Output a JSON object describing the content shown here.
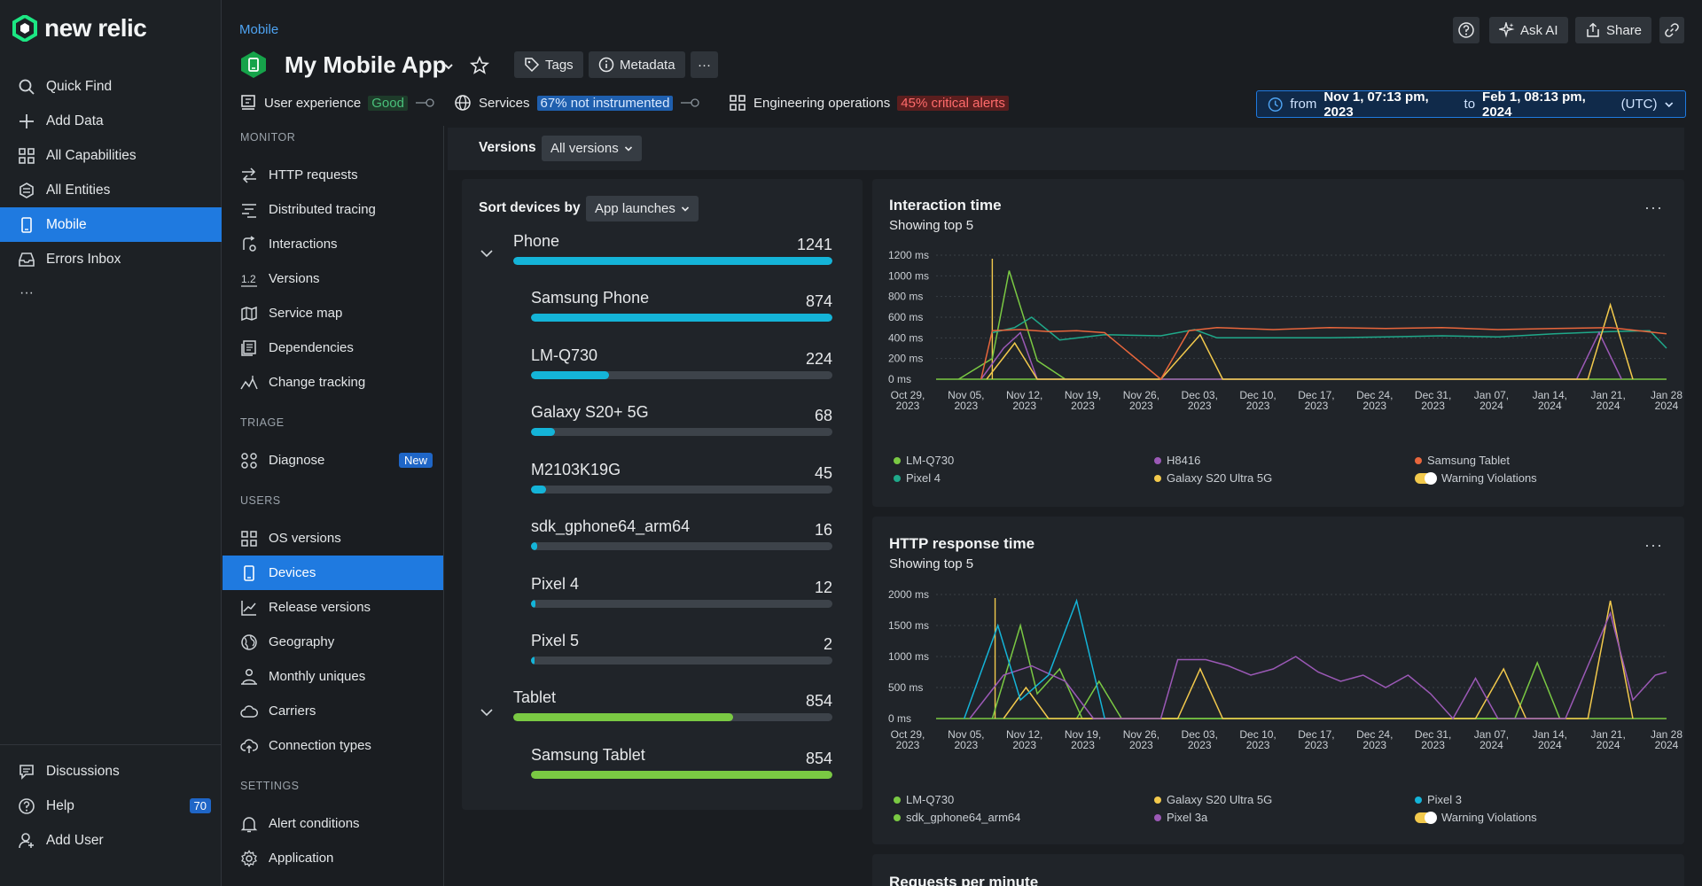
{
  "brand": "new relic",
  "rail": {
    "items": [
      {
        "label": "Quick Find",
        "icon": "search-icon"
      },
      {
        "label": "Add Data",
        "icon": "plus-icon"
      },
      {
        "label": "All Capabilities",
        "icon": "grid-icon"
      },
      {
        "label": "All Entities",
        "icon": "entities-icon"
      },
      {
        "label": "Mobile",
        "icon": "mobile-icon",
        "active": true
      },
      {
        "label": "Errors Inbox",
        "icon": "inbox-icon"
      }
    ],
    "more": "···",
    "bottom": [
      {
        "label": "Discussions",
        "icon": "discussions-icon"
      },
      {
        "label": "Help",
        "icon": "help-icon",
        "badge": "70"
      },
      {
        "label": "Add User",
        "icon": "add-user-icon"
      }
    ]
  },
  "header": {
    "breadcrumb": "Mobile",
    "title": "My Mobile App",
    "tags_label": "Tags",
    "metadata_label": "Metadata",
    "more": "···",
    "ask_ai": "Ask AI",
    "share": "Share",
    "status": {
      "user_experience": "User experience",
      "ux_pill": "Good",
      "services": "Services",
      "services_pill": "67% not instrumented",
      "eng_ops": "Engineering operations",
      "eng_pill": "45% critical alerts"
    },
    "time": {
      "from_word": "from",
      "from": "Nov 1, 07:13 pm, 2023",
      "to_word": "to",
      "to": "Feb 1, 08:13 pm, 2024",
      "tz": "(UTC)"
    }
  },
  "nav2": {
    "monitor": "MONITOR",
    "monitor_items": [
      {
        "label": "HTTP requests",
        "icon": "http-requests-icon"
      },
      {
        "label": "Distributed tracing",
        "icon": "tracing-icon"
      },
      {
        "label": "Interactions",
        "icon": "interactions-icon"
      },
      {
        "label": "Versions",
        "icon": "versions-icon"
      },
      {
        "label": "Service map",
        "icon": "map-icon"
      },
      {
        "label": "Dependencies",
        "icon": "dependencies-icon"
      },
      {
        "label": "Change tracking",
        "icon": "change-tracking-icon"
      }
    ],
    "triage": "TRIAGE",
    "triage_items": [
      {
        "label": "Diagnose",
        "icon": "diagnose-icon",
        "badge": "New"
      }
    ],
    "users": "USERS",
    "users_items": [
      {
        "label": "OS versions",
        "icon": "grid-icon"
      },
      {
        "label": "Devices",
        "icon": "mobile-icon",
        "active": true
      },
      {
        "label": "Release versions",
        "icon": "chart-line-icon"
      },
      {
        "label": "Geography",
        "icon": "globe-icon"
      },
      {
        "label": "Monthly uniques",
        "icon": "users-icon"
      },
      {
        "label": "Carriers",
        "icon": "cloud-icon"
      },
      {
        "label": "Connection types",
        "icon": "cloud-upload-icon"
      }
    ],
    "settings": "SETTINGS",
    "settings_items": [
      {
        "label": "Alert conditions",
        "icon": "bell-icon"
      },
      {
        "label": "Application",
        "icon": "gear-icon"
      }
    ]
  },
  "versions": {
    "label": "Versions",
    "value": "All versions"
  },
  "devices": {
    "sort_label": "Sort devices by",
    "sort_value": "App launches",
    "groups": [
      {
        "name": "Phone",
        "count": "1241",
        "fill": 1.0,
        "color": "#14b4d8",
        "items": [
          {
            "name": "Samsung Phone",
            "count": "874",
            "fill": 1.0
          },
          {
            "name": "LM-Q730",
            "count": "224",
            "fill": 0.26
          },
          {
            "name": "Galaxy S20+ 5G",
            "count": "68",
            "fill": 0.08
          },
          {
            "name": "M2103K19G",
            "count": "45",
            "fill": 0.05
          },
          {
            "name": "sdk_gphone64_arm64",
            "count": "16",
            "fill": 0.02
          },
          {
            "name": "Pixel 4",
            "count": "12",
            "fill": 0.014
          },
          {
            "name": "Pixel 5",
            "count": "2",
            "fill": 0.003
          }
        ]
      },
      {
        "name": "Tablet",
        "count": "854",
        "fill": 0.69,
        "color": "#7ac943",
        "items": [
          {
            "name": "Samsung Tablet",
            "count": "854",
            "fill": 1.0
          }
        ]
      }
    ]
  },
  "chart_data": [
    {
      "type": "line",
      "title": "Interaction time",
      "subtitle": "Showing top 5",
      "y_ticks": [
        "1200 ms",
        "1000 ms",
        "800 ms",
        "600 ms",
        "400 ms",
        "200 ms",
        "0 ms"
      ],
      "ylim": [
        0,
        1200
      ],
      "x_ticks": [
        "Oct 29,|2023",
        "Nov 05,|2023",
        "Nov 12,|2023",
        "Nov 19,|2023",
        "Nov 26,|2023",
        "Dec 03,|2023",
        "Dec 10,|2023",
        "Dec 17,|2023",
        "Dec 24,|2023",
        "Dec 31,|2023",
        "Jan 07,|2024",
        "Jan 14,|2024",
        "Jan 21,|2024",
        "Jan 28|2024"
      ],
      "xlim": [
        0,
        13
      ],
      "series": [
        {
          "name": "LM-Q730",
          "color": "#7ac943",
          "points": [
            [
              0.4,
              0
            ],
            [
              1.0,
              200
            ],
            [
              1.3,
              1050
            ],
            [
              1.8,
              180
            ],
            [
              2.3,
              0
            ]
          ]
        },
        {
          "name": "Pixel 4",
          "color": "#1fa98a",
          "points": [
            [
              1.0,
              450
            ],
            [
              1.4,
              500
            ],
            [
              1.7,
              600
            ],
            [
              2.2,
              380
            ],
            [
              3.0,
              430
            ],
            [
              4.0,
              420
            ],
            [
              4.6,
              480
            ],
            [
              5.0,
              400
            ],
            [
              6.0,
              400
            ],
            [
              7.0,
              400
            ],
            [
              8.0,
              410
            ],
            [
              9.0,
              420
            ],
            [
              10.0,
              410
            ],
            [
              11.0,
              440
            ],
            [
              12.0,
              460
            ],
            [
              12.7,
              470
            ],
            [
              13.0,
              300
            ]
          ]
        },
        {
          "name": "H8416",
          "color": "#9b59b6",
          "points": [
            [
              0.8,
              0
            ],
            [
              1.2,
              300
            ],
            [
              1.5,
              450
            ],
            [
              1.8,
              0
            ],
            [
              11.4,
              0
            ],
            [
              11.8,
              450
            ],
            [
              12.2,
              0
            ]
          ]
        },
        {
          "name": "Galaxy S20 Ultra 5G",
          "color": "#f2c94c",
          "points": [
            [
              0.9,
              0
            ],
            [
              1.4,
              350
            ],
            [
              1.8,
              0
            ],
            [
              4.0,
              0
            ],
            [
              4.7,
              430
            ],
            [
              5.1,
              0
            ],
            [
              11.6,
              0
            ],
            [
              12.0,
              720
            ],
            [
              12.4,
              0
            ]
          ]
        },
        {
          "name": "Samsung Tablet",
          "color": "#e8663c",
          "points": [
            [
              0.8,
              0
            ],
            [
              1.0,
              470
            ],
            [
              1.5,
              480
            ],
            [
              2.0,
              460
            ],
            [
              2.5,
              470
            ],
            [
              3.0,
              450
            ],
            [
              4.0,
              0
            ],
            [
              4.5,
              470
            ],
            [
              5.0,
              500
            ],
            [
              6.0,
              480
            ],
            [
              7.0,
              500
            ],
            [
              8.0,
              490
            ],
            [
              9.0,
              500
            ],
            [
              10.0,
              480
            ],
            [
              11.0,
              490
            ],
            [
              12.0,
              500
            ],
            [
              13.0,
              440
            ]
          ]
        }
      ],
      "spike_x": 1.0,
      "legend": [
        {
          "name": "LM-Q730",
          "color": "#7ac943"
        },
        {
          "name": "H8416",
          "color": "#9b59b6"
        },
        {
          "name": "Samsung Tablet",
          "color": "#e8663c"
        },
        {
          "name": "Pixel 4",
          "color": "#1fa98a"
        },
        {
          "name": "Galaxy S20 Ultra 5G",
          "color": "#f2c94c"
        },
        {
          "name": "Warning Violations",
          "color": "#f2c94c",
          "toggle": true
        }
      ]
    },
    {
      "type": "line",
      "title": "HTTP response time",
      "subtitle": "Showing top 5",
      "y_ticks": [
        "2000 ms",
        "1500 ms",
        "1000 ms",
        "500 ms",
        "0 ms"
      ],
      "ylim": [
        0,
        2000
      ],
      "x_ticks": [
        "Oct 29,|2023",
        "Nov 05,|2023",
        "Nov 12,|2023",
        "Nov 19,|2023",
        "Nov 26,|2023",
        "Dec 03,|2023",
        "Dec 10,|2023",
        "Dec 17,|2023",
        "Dec 24,|2023",
        "Dec 31,|2023",
        "Jan 07,|2024",
        "Jan 14,|2024",
        "Jan 21,|2024",
        "Jan 28|2024"
      ],
      "xlim": [
        0,
        13
      ],
      "series": [
        {
          "name": "LM-Q730",
          "color": "#7ac943",
          "points": [
            [
              1.0,
              0
            ],
            [
              1.5,
              1500
            ],
            [
              1.8,
              400
            ],
            [
              2.2,
              800
            ],
            [
              2.6,
              0
            ],
            [
              10.3,
              0
            ],
            [
              10.7,
              900
            ],
            [
              11.1,
              0
            ]
          ]
        },
        {
          "name": "sdk_gphone64_arm64",
          "color": "#7ac943",
          "points": [
            [
              2.5,
              0
            ],
            [
              2.9,
              600
            ],
            [
              3.3,
              0
            ]
          ]
        },
        {
          "name": "Galaxy S20 Ultra 5G",
          "color": "#f2c94c",
          "points": [
            [
              1.2,
              0
            ],
            [
              1.6,
              500
            ],
            [
              2.0,
              0
            ],
            [
              4.3,
              0
            ],
            [
              4.7,
              800
            ],
            [
              5.1,
              0
            ],
            [
              9.6,
              0
            ],
            [
              10.1,
              800
            ],
            [
              10.5,
              0
            ],
            [
              11.6,
              0
            ],
            [
              12.0,
              1900
            ],
            [
              12.4,
              0
            ]
          ]
        },
        {
          "name": "Pixel 3a",
          "color": "#9b59b6",
          "points": [
            [
              0.6,
              0
            ],
            [
              1.2,
              700
            ],
            [
              1.7,
              850
            ],
            [
              2.3,
              600
            ],
            [
              2.8,
              0
            ],
            [
              4.0,
              0
            ],
            [
              4.3,
              950
            ],
            [
              4.8,
              950
            ],
            [
              5.2,
              850
            ],
            [
              5.6,
              700
            ],
            [
              6.0,
              800
            ],
            [
              6.4,
              1000
            ],
            [
              6.8,
              750
            ],
            [
              7.2,
              600
            ],
            [
              7.6,
              700
            ],
            [
              8.0,
              500
            ],
            [
              8.4,
              700
            ],
            [
              8.8,
              400
            ],
            [
              9.2,
              0
            ],
            [
              9.6,
              650
            ],
            [
              10.0,
              0
            ],
            [
              10.4,
              0
            ],
            [
              10.8,
              0
            ],
            [
              11.2,
              0
            ],
            [
              11.6,
              850
            ],
            [
              12.0,
              1700
            ],
            [
              12.4,
              300
            ],
            [
              12.8,
              700
            ],
            [
              13.0,
              750
            ]
          ]
        },
        {
          "name": "Pixel 3",
          "color": "#14b4d8",
          "points": [
            [
              0.5,
              0
            ],
            [
              1.1,
              1500
            ],
            [
              1.5,
              300
            ],
            [
              2.0,
              700
            ],
            [
              2.5,
              1900
            ],
            [
              3.0,
              0
            ]
          ]
        }
      ],
      "spike_x": 1.05,
      "legend": [
        {
          "name": "LM-Q730",
          "color": "#7ac943"
        },
        {
          "name": "Galaxy S20 Ultra 5G",
          "color": "#f2c94c"
        },
        {
          "name": "Pixel 3",
          "color": "#14b4d8"
        },
        {
          "name": "sdk_gphone64_arm64",
          "color": "#7ac943"
        },
        {
          "name": "Pixel 3a",
          "color": "#9b59b6"
        },
        {
          "name": "Warning Violations",
          "color": "#f2c94c",
          "toggle": true
        }
      ]
    }
  ],
  "third_panel_title": "Requests per minute"
}
